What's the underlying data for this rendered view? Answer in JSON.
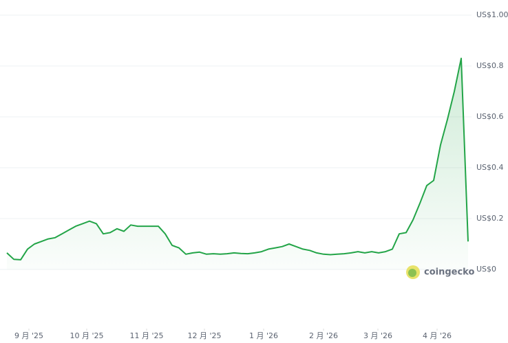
{
  "chart_data": {
    "type": "line",
    "series": [
      {
        "color": "#22a447",
        "values": [
          0.065,
          0.04,
          0.038,
          0.08,
          0.1,
          0.11,
          0.12,
          0.125,
          0.14,
          0.155,
          0.17,
          0.18,
          0.19,
          0.18,
          0.14,
          0.145,
          0.16,
          0.15,
          0.175,
          0.17,
          0.17,
          0.17,
          0.17,
          0.14,
          0.095,
          0.085,
          0.06,
          0.065,
          0.068,
          0.06,
          0.062,
          0.06,
          0.062,
          0.065,
          0.063,
          0.062,
          0.065,
          0.07,
          0.08,
          0.085,
          0.09,
          0.1,
          0.09,
          0.08,
          0.075,
          0.065,
          0.06,
          0.058,
          0.06,
          0.062,
          0.065,
          0.07,
          0.065,
          0.07,
          0.065,
          0.07,
          0.08,
          0.14,
          0.145,
          0.195,
          0.26,
          0.33,
          0.35,
          0.49,
          0.59,
          0.7,
          0.83,
          0.11
        ]
      }
    ],
    "xlim": [
      0,
      67
    ],
    "xticks": [
      {
        "value": 3.2,
        "label": "9 月 '25"
      },
      {
        "value": 11.6,
        "label": "10 月 '25"
      },
      {
        "value": 20.3,
        "label": "11 月 '25"
      },
      {
        "value": 28.7,
        "label": "12 月 '25"
      },
      {
        "value": 37.3,
        "label": "1 月 '26"
      },
      {
        "value": 46,
        "label": "2 月 '26"
      },
      {
        "value": 53.9,
        "label": "3 月 '26"
      },
      {
        "value": 62.5,
        "label": "4 月 '26"
      }
    ],
    "ylim": [
      0,
      1
    ],
    "yticks": [
      {
        "value": 0,
        "label": "US$0"
      },
      {
        "value": 0.2,
        "label": "US$0.2"
      },
      {
        "value": 0.4,
        "label": "US$0.4"
      },
      {
        "value": 0.6,
        "label": "US$0.6"
      },
      {
        "value": 0.8,
        "label": "US$0.8"
      },
      {
        "value": 1,
        "label": "US$1.00"
      }
    ],
    "grid": true,
    "watermark": "coingecko"
  }
}
